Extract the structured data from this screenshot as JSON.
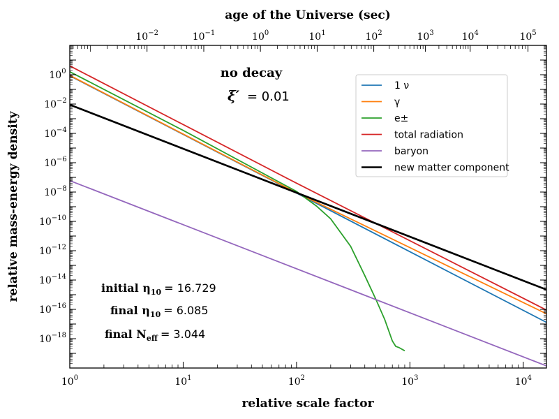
{
  "chart_data": {
    "type": "line",
    "xlabel": "relative scale factor",
    "ylabel": "relative mass-energy density",
    "top_xlabel": "age of the Universe (sec)",
    "xscale": "log",
    "yscale": "log",
    "xlim": [
      1,
      16000
    ],
    "ylim": [
      1e-20,
      100.0
    ],
    "x_tick_labels": [
      "10",
      "10",
      "10",
      "10",
      "10"
    ],
    "x_tick_exponents": [
      "0",
      "1",
      "2",
      "3",
      "4"
    ],
    "top_tick_labels": [
      "10",
      "10",
      "10",
      "10",
      "10",
      "10",
      "10",
      "10"
    ],
    "top_tick_exponents": [
      "−2",
      "−1",
      "0",
      "1",
      "2",
      "3",
      "4",
      "5"
    ],
    "top_tick_a_values": [
      4.8,
      15.2,
      48,
      152,
      480,
      1370,
      3400,
      11000
    ],
    "y_tick_labels": [
      "10",
      "10",
      "10",
      "10",
      "10",
      "10",
      "10",
      "10",
      "10",
      "10"
    ],
    "y_tick_exponents": [
      "0",
      "−2",
      "−4",
      "−6",
      "−8",
      "−10",
      "−12",
      "−14",
      "−16",
      "−18"
    ],
    "series": [
      {
        "name": "1 ν",
        "color": "#1f77b4",
        "x": [
          1,
          10,
          100,
          16000
        ],
        "y": [
          0.85,
          8.5e-05,
          8.5e-09,
          1.3e-17
        ]
      },
      {
        "name": "γ",
        "color": "#ff7f0e",
        "x": [
          1,
          10,
          100,
          16000
        ],
        "y": [
          0.9,
          9e-05,
          9e-09,
          5e-17
        ]
      },
      {
        "name": "e±",
        "color": "#2ca02c",
        "x": [
          1,
          10,
          100,
          150,
          200,
          300,
          400,
          500,
          600,
          700,
          750,
          800,
          900
        ],
        "y": [
          1.6,
          0.00016,
          1.1e-08,
          1.1e-09,
          1.5e-10,
          2e-12,
          2e-14,
          5e-16,
          2e-17,
          7e-19,
          3e-19,
          2.5e-19,
          1.5e-19
        ]
      },
      {
        "name": "total radiation",
        "color": "#d62728",
        "x": [
          1,
          10,
          100,
          16000
        ],
        "y": [
          4,
          0.0004,
          4e-08,
          9e-17
        ]
      },
      {
        "name": "baryon",
        "color": "#9467bd",
        "x": [
          1,
          16000
        ],
        "y": [
          6e-08,
          1.4e-20
        ]
      },
      {
        "name": "new matter component",
        "color": "#000000",
        "x": [
          1,
          16000
        ],
        "y": [
          0.009,
          2.2e-15
        ]
      }
    ],
    "annotations": {
      "title_line1": "no decay",
      "xi_symbol": "ξ′",
      "xi_value": "= 0.01",
      "initial_label": "initial η",
      "initial_sub": "10",
      "initial_value": "= 16.729",
      "final_label": "final η",
      "final_sub": "10",
      "final_value": "= 6.085",
      "neff_label": "final N",
      "neff_sub": "eff",
      "neff_value": "= 3.044"
    },
    "legend_position": "top-right"
  }
}
